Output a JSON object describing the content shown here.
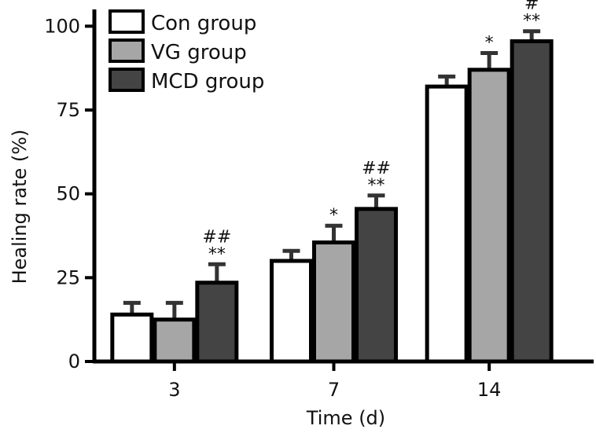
{
  "chart_data": {
    "type": "bar",
    "title": "",
    "xlabel": "Time (d)",
    "ylabel": "Healing rate (%)",
    "categories": [
      "3",
      "7",
      "14"
    ],
    "ylim": [
      0,
      105
    ],
    "yticks": [
      "0",
      "25",
      "50",
      "75",
      "100"
    ],
    "ytick_values": [
      0,
      25,
      50,
      75,
      100
    ],
    "grid": false,
    "legend": "top-left",
    "series": [
      {
        "name": "Con group",
        "color": "#ffffff",
        "values": [
          14,
          30,
          82
        ],
        "errors": [
          3.5,
          3,
          3
        ]
      },
      {
        "name": "VG group",
        "color": "#a6a6a6",
        "values": [
          12.5,
          35.5,
          87
        ],
        "errors": [
          5,
          5,
          5
        ]
      },
      {
        "name": "MCD group",
        "color": "#444444",
        "values": [
          23.5,
          45.5,
          95.5
        ],
        "errors": [
          5.5,
          4,
          3
        ]
      }
    ],
    "annotations": [
      {
        "category": "7",
        "series": "VG group",
        "text": "*"
      },
      {
        "category": "14",
        "series": "VG group",
        "text": "*"
      },
      {
        "category": "3",
        "series": "MCD group",
        "lines": [
          "##",
          "**"
        ]
      },
      {
        "category": "7",
        "series": "MCD group",
        "lines": [
          "##",
          "**"
        ]
      },
      {
        "category": "14",
        "series": "MCD group",
        "lines": [
          "#",
          "**"
        ]
      }
    ]
  }
}
